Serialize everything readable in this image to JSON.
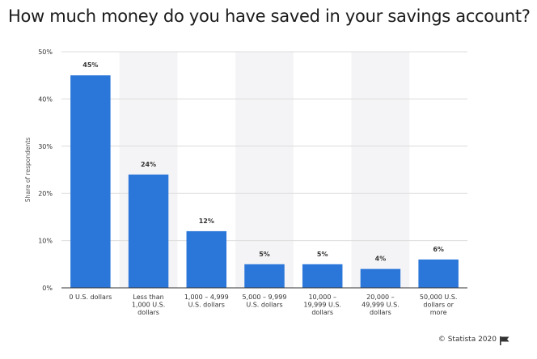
{
  "title": "How much money do you have saved in your savings account?",
  "footer": {
    "credit": "© Statista 2020",
    "flag_icon": "flag-icon"
  },
  "colors": {
    "bar": "#2b76d9",
    "band": "#f4f4f6",
    "grid": "#dcdcdc",
    "axis": "#333333",
    "text": "#333333"
  },
  "chart_data": {
    "type": "bar",
    "ylabel": "Share of respondents",
    "xlabel": "",
    "ylim": [
      0,
      50
    ],
    "yticks": [
      0,
      10,
      20,
      30,
      40,
      50
    ],
    "ytick_labels": [
      "0%",
      "10%",
      "20%",
      "30%",
      "40%",
      "50%"
    ],
    "grid": true,
    "categories": [
      [
        "0 U.S. dollars"
      ],
      [
        "Less than",
        "1,000 U.S.",
        "dollars"
      ],
      [
        "1,000 – 4,999",
        "U.S. dollars"
      ],
      [
        "5,000 – 9,999",
        "U.S. dollars"
      ],
      [
        "10,000 –",
        "19,999 U.S.",
        "dollars"
      ],
      [
        "20,000 –",
        "49,999 U.S.",
        "dollars"
      ],
      [
        "50,000 U.S.",
        "dollars or",
        "more"
      ]
    ],
    "values": [
      45,
      24,
      12,
      5,
      5,
      4,
      6
    ],
    "value_labels": [
      "45%",
      "24%",
      "12%",
      "5%",
      "5%",
      "4%",
      "6%"
    ]
  }
}
